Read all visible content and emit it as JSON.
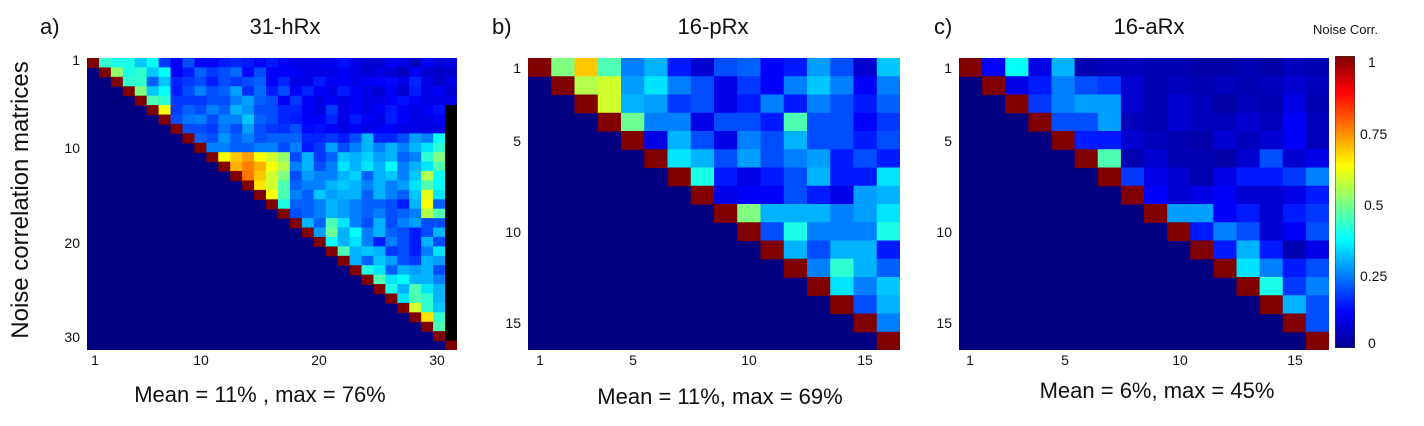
{
  "figure": {
    "ylabel": "Noise correlation matrices",
    "colorbar": {
      "title": "Noise Corr.",
      "ticks": [
        "1",
        "0.75",
        "0.5",
        "0.25",
        "0"
      ],
      "range": [
        0,
        1
      ]
    }
  },
  "panels": [
    {
      "letter": "a)",
      "title": "31-hRx",
      "caption": "Mean = 11% , max = 76%",
      "yticks": [
        "1",
        "10",
        "20",
        "30"
      ],
      "xticks": [
        "1",
        "10",
        "20",
        "30"
      ]
    },
    {
      "letter": "b)",
      "title": "16-pRx",
      "caption": "Mean = 11%, max = 69%",
      "yticks": [
        "1",
        "5",
        "10",
        "15"
      ],
      "xticks": [
        "1",
        "5",
        "10",
        "15"
      ]
    },
    {
      "letter": "c)",
      "title": "16-aRx",
      "caption": "Mean = 6%, max = 45%",
      "yticks": [
        "1",
        "5",
        "10",
        "15"
      ],
      "xticks": [
        "1",
        "5",
        "10",
        "15"
      ]
    }
  ],
  "chart_data": [
    {
      "type": "heatmap",
      "title": "31-hRx",
      "size": 31,
      "diagonal": 1,
      "lower_triangle": 0,
      "summary": {
        "mean_percent": 11,
        "max_percent": 76
      },
      "upper_triangle_rows": [
        [
          0.42,
          0.4,
          0.4,
          0.32,
          0.38,
          0.18,
          0.12,
          0.2,
          0.12,
          0.12,
          0.15,
          0.16,
          0.15,
          0.12,
          0.15,
          0.12,
          0.1,
          0.1,
          0.1,
          0.11,
          0.14,
          0.1,
          0.08,
          0.08,
          0.12,
          0.1,
          0.06,
          0.12,
          0.09,
          0.1
        ],
        [
          0.52,
          0.4,
          0.42,
          0.32,
          0.38,
          0.12,
          0.15,
          0.22,
          0.18,
          0.2,
          0.23,
          0.13,
          0.2,
          0.12,
          0.12,
          0.12,
          0.1,
          0.1,
          0.1,
          0.12,
          0.1,
          0.08,
          0.1,
          0.08,
          0.06,
          0.12,
          0.08,
          0.07,
          0.08
        ],
        [
          0.42,
          0.42,
          0.22,
          0.32,
          0.16,
          0.18,
          0.2,
          0.15,
          0.2,
          0.18,
          0.2,
          0.22,
          0.12,
          0.16,
          0.1,
          0.1,
          0.15,
          0.12,
          0.12,
          0.1,
          0.12,
          0.12,
          0.13,
          0.1,
          0.16,
          0.1,
          0.07,
          0.1
        ],
        [
          0.5,
          0.32,
          0.38,
          0.15,
          0.2,
          0.25,
          0.2,
          0.22,
          0.28,
          0.17,
          0.23,
          0.15,
          0.2,
          0.12,
          0.16,
          0.12,
          0.1,
          0.15,
          0.12,
          0.1,
          0.08,
          0.12,
          0.08,
          0.15,
          0.1,
          0.12,
          0.08
        ],
        [
          0.45,
          0.42,
          0.18,
          0.18,
          0.18,
          0.2,
          0.2,
          0.25,
          0.28,
          0.22,
          0.2,
          0.12,
          0.18,
          0.12,
          0.1,
          0.12,
          0.1,
          0.12,
          0.1,
          0.1,
          0.12,
          0.14,
          0.12,
          0.1,
          0.1,
          0.1
        ],
        [
          0.62,
          0.18,
          0.22,
          0.2,
          0.25,
          0.22,
          0.3,
          0.27,
          0.2,
          0.2,
          0.16,
          0.16,
          0.12,
          0.1,
          0.18,
          0.1,
          0.12,
          0.1,
          0.12,
          0.15,
          0.12,
          0.1,
          0.12,
          0.14
        ],
        [
          0.2,
          0.24,
          0.25,
          0.2,
          0.25,
          0.25,
          0.32,
          0.22,
          0.2,
          0.16,
          0.15,
          0.12,
          0.12,
          0.16,
          0.1,
          0.15,
          0.12,
          0.1,
          0.15,
          0.12,
          0.1,
          0.1,
          0.12
        ],
        [
          0.2,
          0.2,
          0.18,
          0.24,
          0.2,
          0.28,
          0.2,
          0.18,
          0.17,
          0.2,
          0.13,
          0.14,
          0.12,
          0.1,
          0.12,
          0.1,
          0.12,
          0.12,
          0.1,
          0.1,
          0.1,
          0.1
        ],
        [
          0.22,
          0.2,
          0.27,
          0.22,
          0.25,
          0.2,
          0.22,
          0.22,
          0.22,
          0.16,
          0.16,
          0.18,
          0.15,
          0.2,
          0.3,
          0.16,
          0.16,
          0.2,
          0.28,
          0.25,
          0.38
        ],
        [
          0.25,
          0.25,
          0.22,
          0.22,
          0.25,
          0.25,
          0.2,
          0.25,
          0.15,
          0.18,
          0.28,
          0.2,
          0.25,
          0.3,
          0.25,
          0.3,
          0.25,
          0.3,
          0.35,
          0.42
        ],
        [
          0.62,
          0.68,
          0.72,
          0.62,
          0.58,
          0.52,
          0.2,
          0.3,
          0.18,
          0.22,
          0.32,
          0.3,
          0.33,
          0.28,
          0.3,
          0.22,
          0.25,
          0.42,
          0.5
        ],
        [
          0.7,
          0.75,
          0.7,
          0.62,
          0.55,
          0.25,
          0.3,
          0.2,
          0.25,
          0.35,
          0.3,
          0.35,
          0.3,
          0.38,
          0.25,
          0.3,
          0.35,
          0.45
        ],
        [
          0.76,
          0.68,
          0.58,
          0.5,
          0.2,
          0.28,
          0.25,
          0.25,
          0.3,
          0.33,
          0.22,
          0.3,
          0.32,
          0.25,
          0.32,
          0.55,
          0.38
        ],
        [
          0.65,
          0.58,
          0.45,
          0.22,
          0.25,
          0.25,
          0.3,
          0.32,
          0.3,
          0.25,
          0.3,
          0.25,
          0.28,
          0.35,
          0.45,
          0.38
        ],
        [
          0.62,
          0.45,
          0.25,
          0.22,
          0.32,
          0.28,
          0.3,
          0.3,
          0.22,
          0.3,
          0.25,
          0.22,
          0.32,
          0.6,
          0.35
        ],
        [
          0.4,
          0.22,
          0.22,
          0.25,
          0.3,
          0.28,
          0.25,
          0.22,
          0.22,
          0.2,
          0.15,
          0.3,
          0.62,
          0.22
        ],
        [
          0.2,
          0.22,
          0.25,
          0.3,
          0.28,
          0.25,
          0.22,
          0.25,
          0.2,
          0.22,
          0.25,
          0.55,
          0.45
        ],
        [
          0.3,
          0.22,
          0.45,
          0.35,
          0.25,
          0.2,
          0.3,
          0.2,
          0.25,
          0.28,
          0.2,
          0.2
        ],
        [
          0.28,
          0.48,
          0.3,
          0.38,
          0.25,
          0.3,
          0.22,
          0.2,
          0.15,
          0.2,
          0.3
        ],
        [
          0.38,
          0.3,
          0.35,
          0.25,
          0.15,
          0.25,
          0.2,
          0.15,
          0.3,
          0.2
        ],
        [
          0.45,
          0.3,
          0.32,
          0.3,
          0.18,
          0.2,
          0.15,
          0.25,
          0.35
        ],
        [
          0.3,
          0.22,
          0.32,
          0.28,
          0.2,
          0.18,
          0.3,
          0.28
        ],
        [
          0.4,
          0.35,
          0.22,
          0.3,
          0.28,
          0.3,
          0.2
        ],
        [
          0.45,
          0.35,
          0.38,
          0.3,
          0.3,
          0.25
        ],
        [
          0.4,
          0.3,
          0.45,
          0.35,
          0.3
        ],
        [
          0.35,
          0.45,
          0.42,
          0.3
        ],
        [
          0.58,
          0.42,
          0.32
        ],
        [
          0.65,
          0.42
        ],
        [
          0.45
        ],
        []
      ]
    },
    {
      "type": "heatmap",
      "title": "16-pRx",
      "size": 16,
      "diagonal": 1,
      "lower_triangle": 0,
      "summary": {
        "mean_percent": 11,
        "max_percent": 69
      },
      "upper_triangle_rows": [
        [
          0.5,
          0.68,
          0.45,
          0.25,
          0.3,
          0.15,
          0.08,
          0.2,
          0.22,
          0.12,
          0.15,
          0.28,
          0.2,
          0.08,
          0.32
        ],
        [
          0.55,
          0.58,
          0.28,
          0.35,
          0.25,
          0.2,
          0.1,
          0.18,
          0.12,
          0.25,
          0.32,
          0.25,
          0.12,
          0.25
        ],
        [
          0.58,
          0.3,
          0.28,
          0.18,
          0.2,
          0.1,
          0.15,
          0.25,
          0.15,
          0.25,
          0.2,
          0.15,
          0.22
        ],
        [
          0.48,
          0.25,
          0.25,
          0.1,
          0.2,
          0.2,
          0.15,
          0.45,
          0.2,
          0.2,
          0.12,
          0.18
        ],
        [
          0.1,
          0.3,
          0.2,
          0.1,
          0.25,
          0.2,
          0.3,
          0.2,
          0.2,
          0.15,
          0.2
        ],
        [
          0.35,
          0.3,
          0.2,
          0.28,
          0.2,
          0.25,
          0.28,
          0.15,
          0.2,
          0.15
        ],
        [
          0.4,
          0.15,
          0.1,
          0.15,
          0.2,
          0.3,
          0.15,
          0.15,
          0.35
        ],
        [
          0.1,
          0.12,
          0.12,
          0.2,
          0.15,
          0.1,
          0.28,
          0.3
        ],
        [
          0.5,
          0.3,
          0.3,
          0.3,
          0.25,
          0.28,
          0.35
        ],
        [
          0.2,
          0.4,
          0.25,
          0.25,
          0.25,
          0.4
        ],
        [
          0.3,
          0.2,
          0.3,
          0.3,
          0.15
        ],
        [
          0.25,
          0.42,
          0.3,
          0.22
        ],
        [
          0.35,
          0.25,
          0.32
        ],
        [
          0.2,
          0.3
        ],
        [
          0.25
        ],
        []
      ]
    },
    {
      "type": "heatmap",
      "title": "16-aRx",
      "size": 16,
      "diagonal": 1,
      "lower_triangle": 0,
      "summary": {
        "mean_percent": 6,
        "max_percent": 45
      },
      "upper_triangle_rows": [
        [
          0.12,
          0.38,
          0.1,
          0.3,
          0.05,
          0.06,
          0.06,
          0.05,
          0.05,
          0.04,
          0.04,
          0.05,
          0.04,
          0.06,
          0.05
        ],
        [
          0.1,
          0.15,
          0.25,
          0.2,
          0.18,
          0.08,
          0.05,
          0.06,
          0.05,
          0.06,
          0.05,
          0.06,
          0.08,
          0.06
        ],
        [
          0.18,
          0.25,
          0.28,
          0.28,
          0.08,
          0.05,
          0.08,
          0.06,
          0.04,
          0.06,
          0.05,
          0.1,
          0.05
        ],
        [
          0.2,
          0.2,
          0.28,
          0.06,
          0.05,
          0.08,
          0.06,
          0.06,
          0.08,
          0.06,
          0.12,
          0.06
        ],
        [
          0.15,
          0.15,
          0.08,
          0.06,
          0.05,
          0.04,
          0.08,
          0.06,
          0.08,
          0.12,
          0.06
        ],
        [
          0.45,
          0.05,
          0.08,
          0.05,
          0.05,
          0.04,
          0.08,
          0.2,
          0.08,
          0.1
        ],
        [
          0.18,
          0.1,
          0.08,
          0.05,
          0.1,
          0.15,
          0.15,
          0.18,
          0.25
        ],
        [
          0.12,
          0.08,
          0.1,
          0.12,
          0.08,
          0.08,
          0.1,
          0.15
        ],
        [
          0.28,
          0.28,
          0.12,
          0.15,
          0.08,
          0.15,
          0.18
        ],
        [
          0.15,
          0.25,
          0.2,
          0.08,
          0.12,
          0.2
        ],
        [
          0.15,
          0.3,
          0.15,
          0.05,
          0.1
        ],
        [
          0.35,
          0.25,
          0.15,
          0.2
        ],
        [
          0.4,
          0.18,
          0.25
        ],
        [
          0.3,
          0.2
        ],
        [
          0.2
        ],
        []
      ]
    }
  ]
}
